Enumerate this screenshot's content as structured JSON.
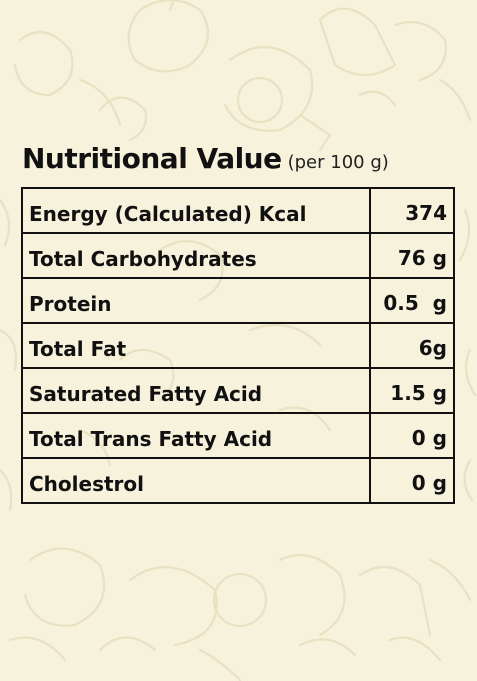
{
  "heading": {
    "title": "Nutritional Value",
    "subtitle": "(per 100 g)"
  },
  "rows": [
    {
      "label": "Energy (Calculated) Kcal",
      "value": "374"
    },
    {
      "label": "Total Carbohydrates",
      "value": "76 g"
    },
    {
      "label": "Protein",
      "value": "0.5  g"
    },
    {
      "label": "Total Fat",
      "value": "6g"
    },
    {
      "label": "Saturated Fatty Acid",
      "value": "1.5 g"
    },
    {
      "label": "Total Trans Fatty Acid",
      "value": "0 g"
    },
    {
      "label": "Cholestrol",
      "value": "0 g"
    }
  ],
  "background": {
    "color": "#f7f2dc",
    "pattern": "vegetable-line-art"
  }
}
